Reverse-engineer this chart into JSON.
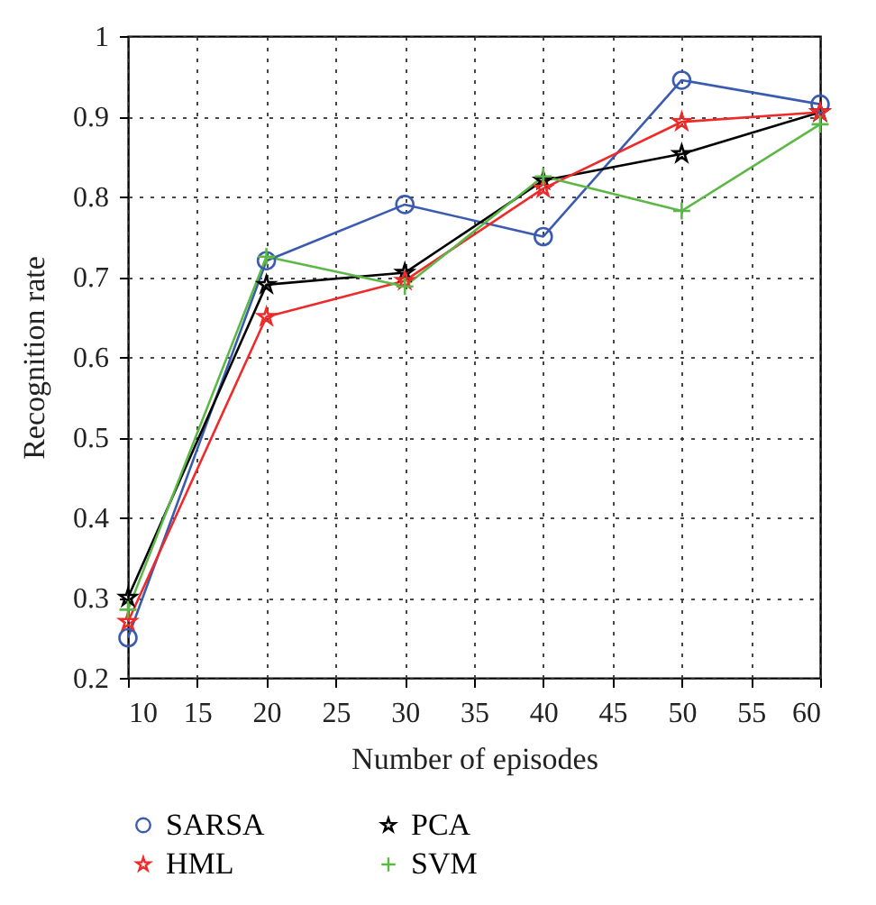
{
  "chart_data": {
    "type": "line",
    "xlabel": "Number of episodes",
    "ylabel": "Recognition rate",
    "x": [
      10,
      20,
      30,
      40,
      50,
      60
    ],
    "xlim": [
      10,
      60
    ],
    "xticks": [
      10,
      15,
      20,
      25,
      30,
      35,
      40,
      45,
      50,
      55,
      60
    ],
    "ylim": [
      0.2,
      1
    ],
    "yticks": [
      0.2,
      0.3,
      0.4,
      0.5,
      0.6,
      0.7,
      0.8,
      0.9,
      {
        "value": 1,
        "label": "1"
      }
    ],
    "grid": true,
    "legend": "bottom",
    "line_style": "solid",
    "series": [
      {
        "name": "SARSA",
        "color": "#3a5bb0",
        "marker": "circle",
        "values": [
          0.25,
          0.72,
          0.79,
          0.75,
          0.945,
          0.915
        ]
      },
      {
        "name": "PCA",
        "color": "#000000",
        "marker": "star",
        "values": [
          0.3,
          0.69,
          0.705,
          0.82,
          0.853,
          0.905
        ]
      },
      {
        "name": "HML",
        "color": "#ee2a2a",
        "marker": "star",
        "values": [
          0.27,
          0.65,
          0.695,
          0.81,
          0.893,
          0.905
        ]
      },
      {
        "name": "SVM",
        "color": "#5cb846",
        "marker": "cross",
        "values": [
          0.285,
          0.725,
          0.688,
          0.825,
          0.782,
          0.89
        ]
      }
    ]
  }
}
